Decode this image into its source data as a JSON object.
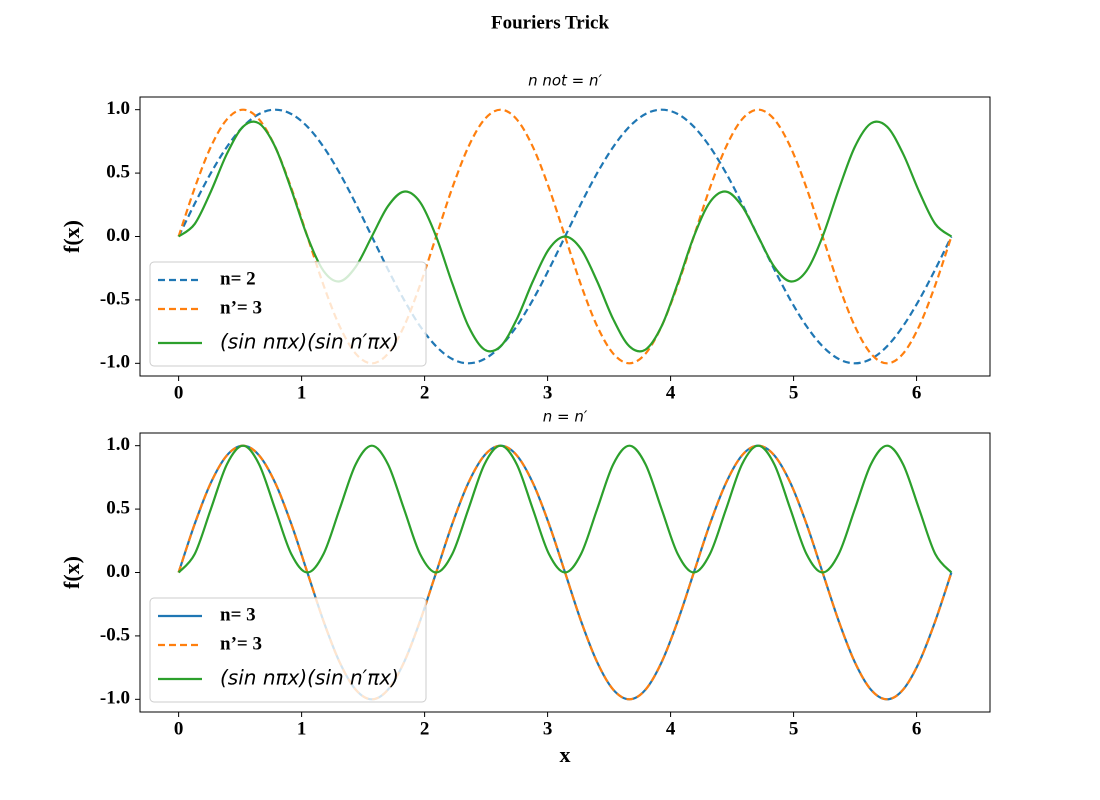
{
  "title": "Fouriers Trick",
  "chart_data": [
    {
      "type": "line",
      "title": "n  not  = n′",
      "ylabel": "f(x)",
      "x": [
        0,
        0.131,
        0.262,
        0.393,
        0.524,
        0.654,
        0.785,
        0.916,
        1.047,
        1.178,
        1.309,
        1.44,
        1.571,
        1.702,
        1.833,
        1.963,
        2.094,
        2.225,
        2.356,
        2.487,
        2.618,
        2.749,
        2.88,
        3.011,
        3.142,
        3.272,
        3.403,
        3.534,
        3.665,
        3.796,
        3.927,
        4.058,
        4.189,
        4.32,
        4.451,
        4.581,
        4.712,
        4.843,
        4.974,
        5.105,
        5.236,
        5.367,
        5.498,
        5.629,
        5.76,
        5.89,
        6.021,
        6.152,
        6.283
      ],
      "series": [
        {
          "name": "n= 2",
          "color": "#1f77b4",
          "linestyle": "dashed",
          "values": [
            0,
            0.259,
            0.5,
            0.707,
            0.866,
            0.966,
            1,
            0.966,
            0.866,
            0.707,
            0.5,
            0.259,
            0,
            -0.259,
            -0.5,
            -0.707,
            -0.866,
            -0.966,
            -1,
            -0.966,
            -0.866,
            -0.707,
            -0.5,
            -0.259,
            0,
            0.259,
            0.5,
            0.707,
            0.866,
            0.966,
            1,
            0.966,
            0.866,
            0.707,
            0.5,
            0.259,
            0,
            -0.259,
            -0.5,
            -0.707,
            -0.866,
            -0.966,
            -1,
            -0.966,
            -0.866,
            -0.707,
            -0.5,
            -0.259,
            0
          ]
        },
        {
          "name": "n’= 3",
          "color": "#ff7f0e",
          "linestyle": "dashed",
          "values": [
            0,
            0.383,
            0.707,
            0.924,
            1,
            0.924,
            0.707,
            0.383,
            0,
            -0.383,
            -0.707,
            -0.924,
            -1,
            -0.924,
            -0.707,
            -0.383,
            0,
            0.383,
            0.707,
            0.924,
            1,
            0.924,
            0.707,
            0.383,
            0,
            -0.383,
            -0.707,
            -0.924,
            -1,
            -0.924,
            -0.707,
            -0.383,
            0,
            0.383,
            0.707,
            0.924,
            1,
            0.924,
            0.707,
            0.383,
            0,
            -0.383,
            -0.707,
            -0.924,
            -1,
            -0.924,
            -0.707,
            -0.383,
            0
          ]
        },
        {
          "name": "(sin nπx)(sin n′πx)",
          "color": "#2ca02c",
          "linestyle": "solid",
          "values": [
            0,
            0.099,
            0.354,
            0.653,
            0.866,
            0.892,
            0.707,
            0.37,
            0,
            -0.271,
            -0.354,
            -0.239,
            0,
            0.239,
            0.354,
            0.271,
            0,
            -0.37,
            -0.707,
            -0.892,
            -0.866,
            -0.653,
            -0.354,
            -0.099,
            0,
            -0.099,
            -0.354,
            -0.653,
            -0.866,
            -0.892,
            -0.707,
            -0.37,
            0,
            0.271,
            0.354,
            0.239,
            0,
            -0.239,
            -0.354,
            -0.271,
            0,
            0.37,
            0.707,
            0.892,
            0.866,
            0.653,
            0.354,
            0.099,
            0
          ]
        }
      ],
      "xlim": [
        -0.314,
        6.597
      ],
      "ylim": [
        -1.1,
        1.1
      ],
      "xticks": [
        0,
        1,
        2,
        3,
        4,
        5,
        6
      ],
      "yticks": [
        {
          "value": -1,
          "label": "-1.0"
        },
        -0.5,
        {
          "value": 0,
          "label": "0.0"
        },
        0.5,
        {
          "value": 1,
          "label": "1.0"
        }
      ],
      "legend": "lower left"
    },
    {
      "type": "line",
      "title": "n = n′",
      "ylabel": "f(x)",
      "xlabel": "x",
      "x": [
        0,
        0.131,
        0.262,
        0.393,
        0.524,
        0.654,
        0.785,
        0.916,
        1.047,
        1.178,
        1.309,
        1.44,
        1.571,
        1.702,
        1.833,
        1.963,
        2.094,
        2.225,
        2.356,
        2.487,
        2.618,
        2.749,
        2.88,
        3.011,
        3.142,
        3.272,
        3.403,
        3.534,
        3.665,
        3.796,
        3.927,
        4.058,
        4.189,
        4.32,
        4.451,
        4.581,
        4.712,
        4.843,
        4.974,
        5.105,
        5.236,
        5.367,
        5.498,
        5.629,
        5.76,
        5.89,
        6.021,
        6.152,
        6.283
      ],
      "series": [
        {
          "name": "n= 3",
          "color": "#1f77b4",
          "linestyle": "solid",
          "values": [
            0,
            0.383,
            0.707,
            0.924,
            1,
            0.924,
            0.707,
            0.383,
            0,
            -0.383,
            -0.707,
            -0.924,
            -1,
            -0.924,
            -0.707,
            -0.383,
            0,
            0.383,
            0.707,
            0.924,
            1,
            0.924,
            0.707,
            0.383,
            0,
            -0.383,
            -0.707,
            -0.924,
            -1,
            -0.924,
            -0.707,
            -0.383,
            0,
            0.383,
            0.707,
            0.924,
            1,
            0.924,
            0.707,
            0.383,
            0,
            -0.383,
            -0.707,
            -0.924,
            -1,
            -0.924,
            -0.707,
            -0.383,
            0
          ]
        },
        {
          "name": "n’= 3",
          "color": "#ff7f0e",
          "linestyle": "dashed",
          "values": [
            0,
            0.383,
            0.707,
            0.924,
            1,
            0.924,
            0.707,
            0.383,
            0,
            -0.383,
            -0.707,
            -0.924,
            -1,
            -0.924,
            -0.707,
            -0.383,
            0,
            0.383,
            0.707,
            0.924,
            1,
            0.924,
            0.707,
            0.383,
            0,
            -0.383,
            -0.707,
            -0.924,
            -1,
            -0.924,
            -0.707,
            -0.383,
            0,
            0.383,
            0.707,
            0.924,
            1,
            0.924,
            0.707,
            0.383,
            0,
            -0.383,
            -0.707,
            -0.924,
            -1,
            -0.924,
            -0.707,
            -0.383,
            0
          ]
        },
        {
          "name": "(sin nπx)(sin n′πx)",
          "color": "#2ca02c",
          "linestyle": "solid",
          "values": [
            0,
            0.146,
            0.5,
            0.854,
            1,
            0.854,
            0.5,
            0.146,
            0,
            0.146,
            0.5,
            0.854,
            1,
            0.854,
            0.5,
            0.146,
            0,
            0.146,
            0.5,
            0.854,
            1,
            0.854,
            0.5,
            0.146,
            0,
            0.146,
            0.5,
            0.854,
            1,
            0.854,
            0.5,
            0.146,
            0,
            0.146,
            0.5,
            0.854,
            1,
            0.854,
            0.5,
            0.146,
            0,
            0.146,
            0.5,
            0.854,
            1,
            0.854,
            0.5,
            0.146,
            0
          ]
        }
      ],
      "xlim": [
        -0.314,
        6.597
      ],
      "ylim": [
        -1.1,
        1.1
      ],
      "xticks": [
        0,
        1,
        2,
        3,
        4,
        5,
        6
      ],
      "yticks": [
        {
          "value": -1,
          "label": "-1.0"
        },
        -0.5,
        {
          "value": 0,
          "label": "0.0"
        },
        0.5,
        {
          "value": 1,
          "label": "1.0"
        }
      ],
      "legend": "lower left"
    }
  ]
}
